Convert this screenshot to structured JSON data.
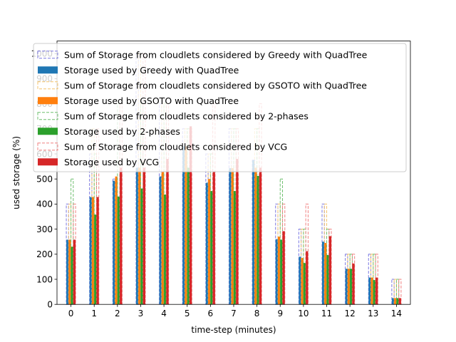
{
  "chart_data": {
    "type": "bar",
    "xlabel": "time-step (minutes)",
    "ylabel": "used storage (%)",
    "categories": [
      "0",
      "1",
      "2",
      "3",
      "4",
      "5",
      "6",
      "7",
      "8",
      "9",
      "10",
      "11",
      "12",
      "13",
      "14"
    ],
    "ylim": [
      0,
      1050
    ],
    "yticks": [
      0,
      100,
      200,
      300,
      400,
      500,
      600,
      700,
      800,
      900,
      1000
    ],
    "grid": false,
    "legend_position": "top-left",
    "series": [
      {
        "name": "Sum of Storage from cloudlets considered by Greedy with QuadTree",
        "style": "dashed-outline",
        "color": "#7b78e0",
        "values": [
          400,
          600,
          500,
          1000,
          800,
          700,
          600,
          700,
          575,
          400,
          300,
          400,
          200,
          200,
          100
        ]
      },
      {
        "name": "Storage used by Greedy with QuadTree",
        "style": "filled",
        "color": "#1f77b4",
        "values": [
          258,
          428,
          493,
          545,
          510,
          630,
          485,
          543,
          575,
          260,
          190,
          250,
          142,
          107,
          25
        ]
      },
      {
        "name": "Sum of Storage from cloudlets considered by GSOTO with QuadTree",
        "style": "dashed-outline",
        "color": "#f5c36b",
        "values": [
          400,
          700,
          500,
          1000,
          800,
          700,
          600,
          700,
          700,
          400,
          300,
          400,
          200,
          200,
          100
        ]
      },
      {
        "name": "Storage used by GSOTO with QuadTree",
        "style": "filled",
        "color": "#ff7f0e",
        "values": [
          258,
          428,
          510,
          545,
          530,
          630,
          500,
          543,
          545,
          270,
          185,
          245,
          142,
          107,
          25
        ]
      },
      {
        "name": "Sum of Storage from cloudlets considered by 2-phases",
        "style": "dashed-outline",
        "color": "#6fbf6f",
        "values": [
          500,
          600,
          800,
          800,
          800,
          700,
          600,
          700,
          700,
          500,
          300,
          300,
          200,
          200,
          100
        ]
      },
      {
        "name": "Storage used by 2-phases",
        "style": "filled",
        "color": "#2ca02c",
        "values": [
          230,
          358,
          430,
          462,
          438,
          545,
          452,
          452,
          512,
          258,
          165,
          197,
          142,
          97,
          25
        ]
      },
      {
        "name": "Sum of Storage from cloudlets considered by VCG",
        "style": "dashed-outline",
        "color": "#f08080",
        "values": [
          400,
          700,
          800,
          1000,
          800,
          700,
          800,
          700,
          800,
          400,
          400,
          300,
          200,
          200,
          100
        ]
      },
      {
        "name": "Storage used by VCG",
        "style": "filled",
        "color": "#d62728",
        "values": [
          258,
          428,
          545,
          545,
          580,
          710,
          528,
          580,
          545,
          292,
          212,
          272,
          163,
          107,
          25
        ]
      }
    ]
  }
}
